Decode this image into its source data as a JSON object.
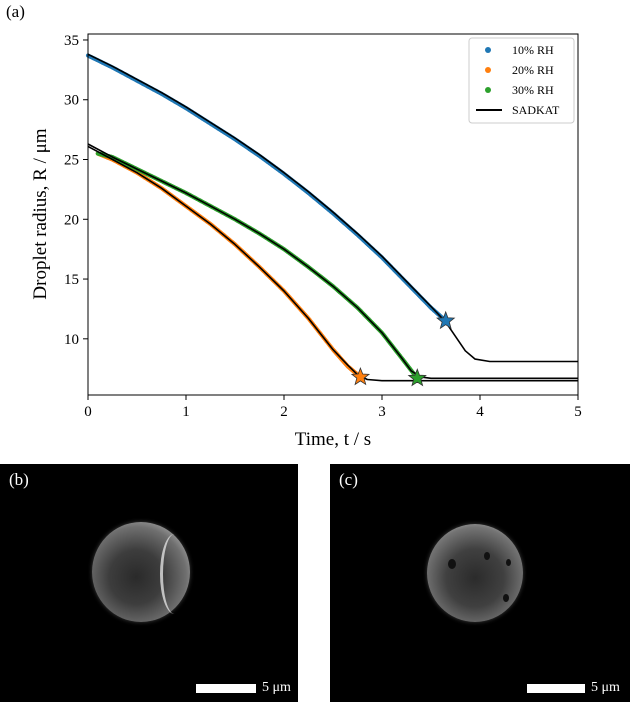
{
  "panels": {
    "a": "(a)",
    "b": "(b)",
    "c": "(c)"
  },
  "scale_bar_text": "5 μm",
  "chart_data": {
    "type": "line",
    "xlabel": "Time, t / s",
    "ylabel": "Droplet radius, R / μm",
    "xlim": [
      0,
      5
    ],
    "ylim": [
      5.3,
      35.5
    ],
    "xticks": [
      0,
      1,
      2,
      3,
      4,
      5
    ],
    "yticks": [
      10,
      15,
      20,
      25,
      30,
      35
    ],
    "legend_position": "top-right",
    "series": [
      {
        "name": "10% RH",
        "kind": "scatter",
        "color": "#1f77b4",
        "x": [
          0.0,
          0.25,
          0.5,
          0.75,
          1.0,
          1.25,
          1.5,
          1.75,
          2.0,
          2.25,
          2.5,
          2.75,
          3.0,
          3.25,
          3.5,
          3.65
        ],
        "y": [
          33.7,
          32.7,
          31.6,
          30.5,
          29.3,
          28.0,
          26.7,
          25.3,
          23.8,
          22.2,
          20.5,
          18.7,
          16.8,
          14.7,
          12.6,
          11.5
        ]
      },
      {
        "name": "20% RH",
        "kind": "scatter",
        "color": "#ff7f0e",
        "x": [
          0.1,
          0.25,
          0.5,
          0.75,
          1.0,
          1.25,
          1.5,
          1.75,
          2.0,
          2.25,
          2.5,
          2.65,
          2.78
        ],
        "y": [
          25.5,
          25.0,
          23.9,
          22.6,
          21.1,
          19.6,
          17.9,
          16.0,
          14.0,
          11.7,
          9.1,
          7.7,
          6.8
        ]
      },
      {
        "name": "30% RH",
        "kind": "scatter",
        "color": "#2ca02c",
        "x": [
          0.1,
          0.25,
          0.5,
          0.75,
          1.0,
          1.25,
          1.5,
          1.75,
          2.0,
          2.25,
          2.5,
          2.75,
          3.0,
          3.2,
          3.36
        ],
        "y": [
          25.5,
          25.2,
          24.2,
          23.2,
          22.2,
          21.1,
          20.0,
          18.8,
          17.5,
          16.0,
          14.4,
          12.6,
          10.5,
          8.4,
          6.7
        ]
      },
      {
        "name": "SADKAT",
        "kind": "line",
        "color": "#000000",
        "x": [
          0.0,
          0.25,
          0.5,
          0.75,
          1.0,
          1.25,
          1.5,
          1.75,
          2.0,
          2.25,
          2.5,
          2.75,
          3.0,
          3.25,
          3.5,
          3.65,
          3.75,
          3.85,
          3.95,
          4.1,
          5.0
        ],
        "y": [
          33.8,
          32.8,
          31.7,
          30.6,
          29.4,
          28.1,
          26.8,
          25.4,
          23.9,
          22.3,
          20.6,
          18.8,
          16.9,
          14.8,
          12.7,
          11.4,
          10.2,
          9.0,
          8.3,
          8.1,
          8.1
        ]
      },
      {
        "name": "",
        "kind": "line",
        "color": "#000000",
        "x": [
          0.0,
          0.25,
          0.5,
          0.75,
          1.0,
          1.25,
          1.5,
          1.75,
          2.0,
          2.25,
          2.5,
          2.65,
          2.75,
          2.85,
          3.0,
          5.0
        ],
        "y": [
          26.1,
          25.0,
          23.9,
          22.6,
          21.1,
          19.6,
          17.9,
          16.0,
          14.0,
          11.7,
          9.1,
          7.8,
          7.0,
          6.6,
          6.5,
          6.5
        ]
      },
      {
        "name": "",
        "kind": "line",
        "color": "#000000",
        "x": [
          0.0,
          0.25,
          0.5,
          0.75,
          1.0,
          1.25,
          1.5,
          1.75,
          2.0,
          2.25,
          2.5,
          2.75,
          3.0,
          3.2,
          3.3,
          3.4,
          3.5,
          5.0
        ],
        "y": [
          26.3,
          25.2,
          24.2,
          23.2,
          22.2,
          21.1,
          20.0,
          18.8,
          17.5,
          16.0,
          14.4,
          12.6,
          10.5,
          8.4,
          7.3,
          6.8,
          6.7,
          6.7
        ]
      }
    ],
    "markers": [
      {
        "series": "10% RH",
        "shape": "star",
        "x": 3.65,
        "y": 11.5,
        "color": "#1f77b4"
      },
      {
        "series": "20% RH",
        "shape": "star",
        "x": 2.78,
        "y": 6.8,
        "color": "#ff7f0e"
      },
      {
        "series": "30% RH",
        "shape": "star",
        "x": 3.36,
        "y": 6.7,
        "color": "#2ca02c"
      }
    ]
  }
}
